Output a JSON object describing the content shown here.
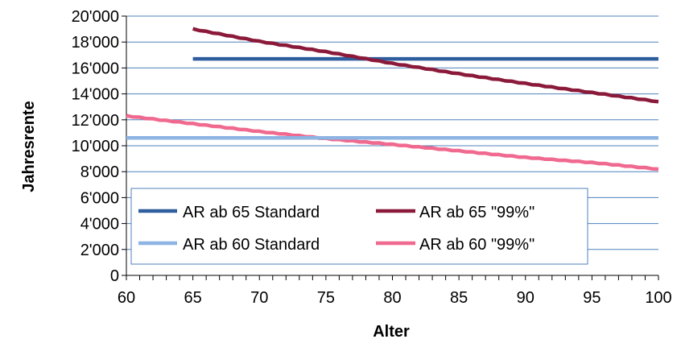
{
  "chart_data": {
    "type": "line",
    "title": "",
    "xlabel": "Alter",
    "ylabel": "Jahresrente",
    "xlim": [
      60,
      100
    ],
    "ylim": [
      0,
      20000
    ],
    "x_ticks": [
      "60",
      "65",
      "70",
      "75",
      "80",
      "85",
      "90",
      "95",
      "100"
    ],
    "y_ticks": [
      "0",
      "2'000",
      "4'000",
      "6'000",
      "8'000",
      "10'000",
      "12'000",
      "14'000",
      "16'000",
      "18'000",
      "20'000"
    ],
    "grid": "horizontal",
    "legend_position": "bottom-left inside plot",
    "series": [
      {
        "name": "AR ab 65 Standard",
        "color": "#2E5E9E",
        "x": [
          65,
          100
        ],
        "y": [
          16700,
          16700
        ]
      },
      {
        "name": "AR ab 65 \"99%\"",
        "color": "#8B1A3A",
        "x": [
          65,
          70,
          75,
          80,
          85,
          90,
          95,
          100
        ],
        "y": [
          19000,
          18050,
          17250,
          16350,
          15550,
          14800,
          14100,
          13400
        ]
      },
      {
        "name": "AR ab 60 Standard",
        "color": "#8DB4E2",
        "x": [
          60,
          100
        ],
        "y": [
          10600,
          10600
        ]
      },
      {
        "name": "AR ab 60 \"99%\"",
        "color": "#F0698F",
        "x": [
          60,
          65,
          70,
          75,
          80,
          85,
          90,
          95,
          100
        ],
        "y": [
          12300,
          11700,
          11100,
          10550,
          10100,
          9600,
          9100,
          8700,
          8200
        ]
      }
    ]
  }
}
